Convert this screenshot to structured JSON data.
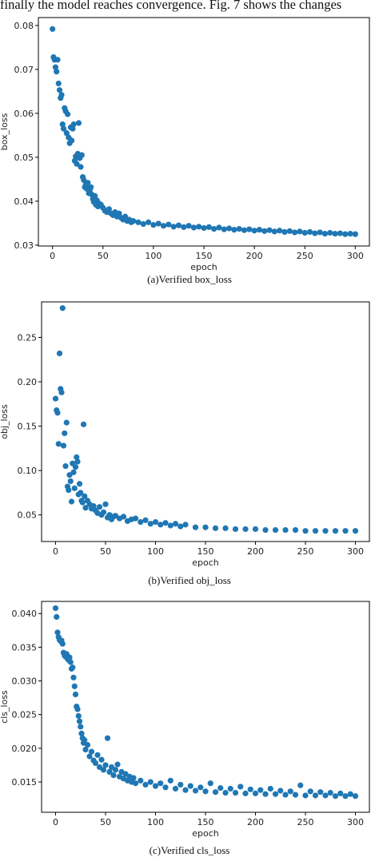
{
  "page": {
    "top_text": "finally the model reaches convergence. Fig. 7 shows the changes"
  },
  "colors": {
    "marker": "#1f77b4",
    "axis": "#000000"
  },
  "chart_data": [
    {
      "type": "scatter",
      "caption": "(a)Verified box_loss",
      "xlabel": "epoch",
      "ylabel": "box_loss",
      "xlim": [
        -14,
        314
      ],
      "ylim": [
        0.0298,
        0.0818
      ],
      "x_ticks": [
        0,
        50,
        100,
        150,
        200,
        250,
        300
      ],
      "y_ticks": [
        0.03,
        0.04,
        0.05,
        0.06,
        0.07,
        0.08
      ],
      "y_tick_labels": [
        "0.03",
        "0.04",
        "0.05",
        "0.06",
        "0.07",
        "0.08"
      ],
      "grid": false,
      "series": [
        {
          "x": [
            0,
            1,
            2,
            3,
            4,
            5,
            6,
            7,
            8,
            9,
            10,
            11,
            12,
            13,
            14,
            15,
            16,
            17,
            18,
            19,
            20,
            21,
            22,
            23,
            24,
            25,
            26,
            27,
            28,
            29,
            30,
            31,
            32,
            33,
            34,
            35,
            36,
            37,
            38,
            39,
            40,
            41,
            42,
            43,
            44,
            45,
            46,
            48,
            50,
            52,
            54,
            56,
            58,
            60,
            62,
            64,
            66,
            68,
            70,
            72,
            74,
            76,
            78,
            80,
            85,
            90,
            95,
            100,
            105,
            110,
            115,
            120,
            125,
            130,
            135,
            140,
            145,
            150,
            155,
            160,
            165,
            170,
            175,
            180,
            185,
            190,
            195,
            200,
            205,
            210,
            215,
            220,
            225,
            230,
            235,
            240,
            245,
            250,
            255,
            260,
            265,
            270,
            275,
            280,
            285,
            290,
            295,
            300
          ],
          "y": [
            0.0792,
            0.0728,
            0.0722,
            0.0705,
            0.0695,
            0.0722,
            0.0668,
            0.0653,
            0.0635,
            0.0642,
            0.0575,
            0.0565,
            0.0612,
            0.0605,
            0.0555,
            0.0598,
            0.0545,
            0.0532,
            0.0568,
            0.0538,
            0.0565,
            0.0575,
            0.0492,
            0.0502,
            0.0485,
            0.0508,
            0.0578,
            0.0498,
            0.0478,
            0.0505,
            0.0455,
            0.0448,
            0.0432,
            0.0438,
            0.0428,
            0.0442,
            0.0418,
            0.0425,
            0.0432,
            0.0415,
            0.0405,
            0.0398,
            0.0412,
            0.0392,
            0.0402,
            0.0388,
            0.0395,
            0.0392,
            0.0385,
            0.0378,
            0.0375,
            0.0382,
            0.0372,
            0.0368,
            0.0375,
            0.0365,
            0.0372,
            0.0362,
            0.0358,
            0.0365,
            0.0355,
            0.0358,
            0.0352,
            0.0355,
            0.0352,
            0.0348,
            0.0352,
            0.0346,
            0.0349,
            0.0344,
            0.0347,
            0.0342,
            0.0345,
            0.0341,
            0.0344,
            0.034,
            0.0342,
            0.0339,
            0.0341,
            0.0337,
            0.034,
            0.0336,
            0.0338,
            0.0335,
            0.0337,
            0.0334,
            0.0336,
            0.0333,
            0.0335,
            0.0332,
            0.0334,
            0.0331,
            0.0333,
            0.033,
            0.0332,
            0.0329,
            0.0331,
            0.0328,
            0.033,
            0.0327,
            0.0329,
            0.0326,
            0.0328,
            0.0326,
            0.0327,
            0.0325,
            0.0326,
            0.0325
          ]
        }
      ]
    },
    {
      "type": "scatter",
      "caption": "(b)Verified obj_loss",
      "xlabel": "epoch",
      "ylabel": "obj_loss",
      "xlim": [
        -14,
        314
      ],
      "ylim": [
        0.02,
        0.29
      ],
      "x_ticks": [
        0,
        50,
        100,
        150,
        200,
        250,
        300
      ],
      "y_ticks": [
        0.05,
        0.1,
        0.15,
        0.2,
        0.25
      ],
      "y_tick_labels": [
        "0.05",
        "0.10",
        "0.15",
        "0.20",
        "0.25"
      ],
      "grid": false,
      "series": [
        {
          "x": [
            0,
            1,
            2,
            3,
            4,
            5,
            6,
            7,
            8,
            9,
            10,
            11,
            12,
            13,
            14,
            15,
            16,
            17,
            18,
            19,
            20,
            21,
            22,
            23,
            24,
            25,
            26,
            27,
            28,
            29,
            30,
            32,
            34,
            36,
            38,
            40,
            42,
            44,
            46,
            48,
            50,
            52,
            54,
            56,
            58,
            60,
            64,
            68,
            72,
            76,
            80,
            85,
            90,
            95,
            100,
            105,
            110,
            115,
            120,
            125,
            130,
            140,
            150,
            160,
            170,
            180,
            190,
            200,
            210,
            220,
            230,
            240,
            250,
            260,
            270,
            280,
            290,
            300
          ],
          "y": [
            0.181,
            0.168,
            0.165,
            0.13,
            0.232,
            0.192,
            0.188,
            0.283,
            0.128,
            0.142,
            0.105,
            0.154,
            0.082,
            0.078,
            0.095,
            0.088,
            0.065,
            0.108,
            0.098,
            0.08,
            0.104,
            0.115,
            0.11,
            0.073,
            0.085,
            0.075,
            0.066,
            0.064,
            0.152,
            0.071,
            0.058,
            0.066,
            0.062,
            0.057,
            0.06,
            0.055,
            0.052,
            0.059,
            0.05,
            0.053,
            0.062,
            0.047,
            0.05,
            0.045,
            0.048,
            0.049,
            0.046,
            0.048,
            0.043,
            0.045,
            0.046,
            0.042,
            0.044,
            0.04,
            0.042,
            0.039,
            0.041,
            0.038,
            0.04,
            0.037,
            0.039,
            0.036,
            0.036,
            0.035,
            0.035,
            0.034,
            0.034,
            0.034,
            0.033,
            0.033,
            0.033,
            0.033,
            0.032,
            0.032,
            0.032,
            0.032,
            0.032,
            0.032
          ]
        }
      ]
    },
    {
      "type": "scatter",
      "caption": "(c)Verified cls_loss",
      "xlabel": "epoch",
      "ylabel": "cls_loss",
      "xlim": [
        -14,
        314
      ],
      "ylim": [
        0.0105,
        0.0418
      ],
      "x_ticks": [
        0,
        50,
        100,
        150,
        200,
        250,
        300
      ],
      "y_ticks": [
        0.015,
        0.02,
        0.025,
        0.03,
        0.035,
        0.04
      ],
      "y_tick_labels": [
        "0.015",
        "0.020",
        "0.025",
        "0.030",
        "0.035",
        "0.040"
      ],
      "grid": false,
      "series": [
        {
          "x": [
            0,
            1,
            2,
            3,
            4,
            5,
            6,
            7,
            8,
            9,
            10,
            11,
            12,
            13,
            14,
            15,
            16,
            17,
            18,
            19,
            20,
            21,
            22,
            23,
            24,
            25,
            26,
            27,
            28,
            29,
            30,
            32,
            34,
            36,
            38,
            40,
            42,
            44,
            46,
            48,
            50,
            52,
            54,
            56,
            58,
            60,
            62,
            64,
            66,
            68,
            70,
            72,
            74,
            76,
            78,
            80,
            85,
            90,
            95,
            100,
            105,
            110,
            115,
            120,
            125,
            130,
            135,
            140,
            145,
            150,
            155,
            160,
            165,
            170,
            175,
            180,
            185,
            190,
            195,
            200,
            205,
            210,
            215,
            220,
            225,
            230,
            235,
            240,
            245,
            250,
            255,
            260,
            265,
            270,
            275,
            280,
            285,
            290,
            295,
            300
          ],
          "y": [
            0.0408,
            0.0395,
            0.0372,
            0.0365,
            0.0361,
            0.0359,
            0.036,
            0.0355,
            0.0342,
            0.0338,
            0.0336,
            0.034,
            0.0333,
            0.0331,
            0.0335,
            0.0328,
            0.0318,
            0.032,
            0.0305,
            0.0292,
            0.028,
            0.0262,
            0.0258,
            0.0248,
            0.024,
            0.0232,
            0.0222,
            0.0215,
            0.0208,
            0.0212,
            0.0198,
            0.0205,
            0.0188,
            0.0195,
            0.0182,
            0.0178,
            0.019,
            0.0172,
            0.0183,
            0.0168,
            0.0175,
            0.0215,
            0.0165,
            0.0172,
            0.016,
            0.0168,
            0.0176,
            0.0158,
            0.0165,
            0.0155,
            0.0162,
            0.0152,
            0.0158,
            0.015,
            0.0156,
            0.0148,
            0.0152,
            0.0146,
            0.015,
            0.0144,
            0.0148,
            0.0142,
            0.0152,
            0.014,
            0.0146,
            0.0138,
            0.0144,
            0.0137,
            0.0142,
            0.0136,
            0.0148,
            0.0135,
            0.0141,
            0.0134,
            0.014,
            0.0134,
            0.0143,
            0.0133,
            0.0139,
            0.0133,
            0.0138,
            0.0132,
            0.014,
            0.0132,
            0.0137,
            0.0131,
            0.0136,
            0.0131,
            0.0145,
            0.013,
            0.0136,
            0.013,
            0.0135,
            0.013,
            0.0134,
            0.0129,
            0.0133,
            0.0129,
            0.0132,
            0.0129
          ]
        }
      ]
    }
  ]
}
